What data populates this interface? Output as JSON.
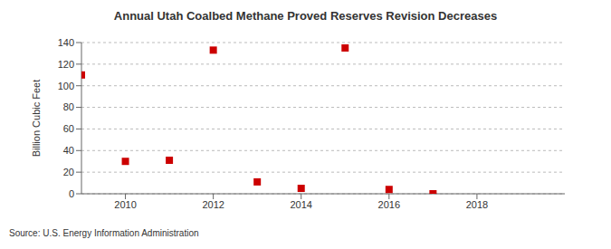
{
  "chart_data": {
    "type": "scatter",
    "title": "Annual Utah Coalbed Methane Proved Reserves Revision Decreases",
    "ylabel": "Billion Cubic Feet",
    "source": "Source: U.S. Energy Information Administration",
    "x": [
      2009,
      2010,
      2011,
      2012,
      2013,
      2014,
      2015,
      2016,
      2017
    ],
    "values": [
      110,
      30,
      31,
      133,
      11,
      5,
      135,
      4,
      0
    ],
    "xlim": [
      2009,
      2020
    ],
    "ylim": [
      0,
      140
    ],
    "xticks": [
      2010,
      2012,
      2014,
      2016,
      2018
    ],
    "yticks": [
      0,
      20,
      40,
      60,
      80,
      100,
      120,
      140
    ],
    "grid": true,
    "color": "#cc0000",
    "marker": "square"
  }
}
